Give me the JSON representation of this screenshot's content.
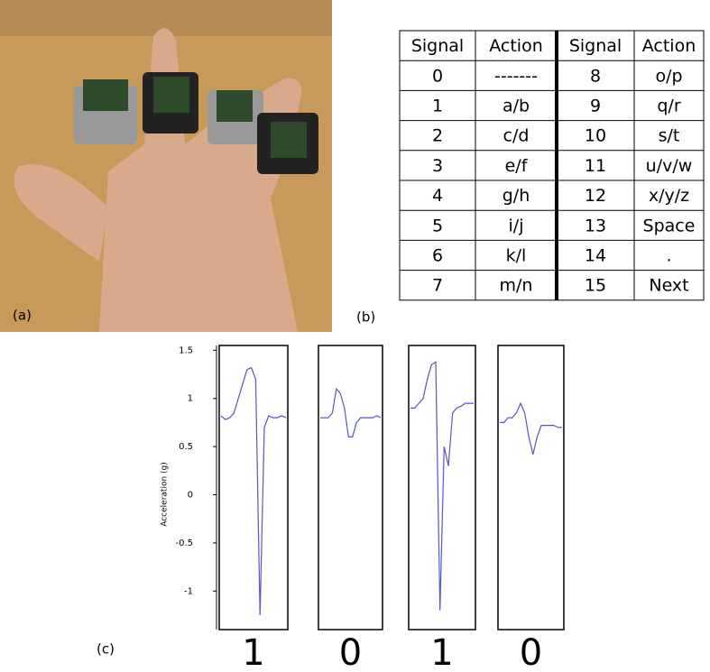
{
  "figure": {
    "photo_label": "(a)",
    "table_label": "(b)",
    "plot_label": "(c)",
    "table": {
      "header": [
        "Signal",
        "Action",
        "Signal",
        "Action"
      ],
      "rows": [
        [
          "0",
          "-------",
          "8",
          "o/p"
        ],
        [
          "1",
          "a/b",
          "9",
          "q/r"
        ],
        [
          "2",
          "c/d",
          "10",
          "s/t"
        ],
        [
          "3",
          "e/f",
          "11",
          "u/v/w"
        ],
        [
          "4",
          "g/h",
          "12",
          "x/y/z"
        ],
        [
          "5",
          "i/j",
          "13",
          "Space"
        ],
        [
          "6",
          "k/l",
          "14",
          "."
        ],
        [
          "7",
          "m/n",
          "15",
          "Next"
        ]
      ]
    },
    "plot": {
      "ylabel": "Acceleration (g)",
      "ylim": [
        -1.4,
        1.55
      ],
      "yticks": [
        1.5,
        1,
        0.5,
        0,
        -0.5,
        -1
      ],
      "color": "#5555cc",
      "panels": [
        {
          "bit": "1",
          "values": [
            0.82,
            0.78,
            0.8,
            0.85,
            1.0,
            1.15,
            1.3,
            1.32,
            1.2,
            -1.25,
            0.7,
            0.82,
            0.8,
            0.8,
            0.82,
            0.8
          ]
        },
        {
          "bit": "0",
          "values": [
            0.8,
            0.8,
            0.8,
            0.85,
            1.1,
            1.05,
            0.9,
            0.6,
            0.6,
            0.75,
            0.8,
            0.8,
            0.8,
            0.8,
            0.82,
            0.8
          ]
        },
        {
          "bit": "1",
          "values": [
            0.9,
            0.9,
            0.95,
            1.0,
            1.2,
            1.35,
            1.38,
            -1.2,
            0.5,
            0.3,
            0.85,
            0.9,
            0.92,
            0.95,
            0.95,
            0.95
          ]
        },
        {
          "bit": "0",
          "values": [
            0.75,
            0.75,
            0.8,
            0.8,
            0.85,
            0.95,
            0.85,
            0.6,
            0.42,
            0.6,
            0.72,
            0.72,
            0.72,
            0.72,
            0.7,
            0.7
          ]
        }
      ]
    }
  }
}
